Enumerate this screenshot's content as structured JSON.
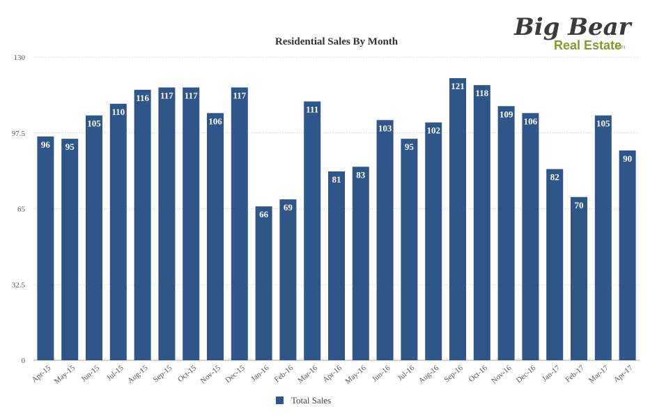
{
  "logo": {
    "top": "Big Bear",
    "bottom": "Real Estate",
    "suffix": ".com"
  },
  "chart_data": {
    "type": "bar",
    "title": "Residential Sales By Month",
    "xlabel": "",
    "ylabel": "",
    "ylim": [
      0,
      130
    ],
    "yticks": [
      0,
      32.5,
      65,
      97.5,
      130
    ],
    "grid": true,
    "legend_position": "bottom",
    "bar_color": "#2f5689",
    "categories": [
      "Apr-15",
      "May-15",
      "Jun-15",
      "Jul-15",
      "Aug-15",
      "Sep-15",
      "Oct-15",
      "Nov-15",
      "Dec-15",
      "Jan-16",
      "Feb-16",
      "Mar-16",
      "Apr-16",
      "May-16",
      "Jun-16",
      "Jul-16",
      "Aug-16",
      "Sep-16",
      "Oct-16",
      "Nov-16",
      "Dec-16",
      "Jan-17",
      "Feb-17",
      "Mar-17",
      "Apr-17"
    ],
    "series": [
      {
        "name": "Total Sales",
        "values": [
          96,
          95,
          105,
          110,
          116,
          117,
          117,
          106,
          117,
          66,
          69,
          111,
          81,
          83,
          103,
          95,
          102,
          121,
          118,
          109,
          106,
          82,
          70,
          105,
          90
        ]
      }
    ]
  }
}
